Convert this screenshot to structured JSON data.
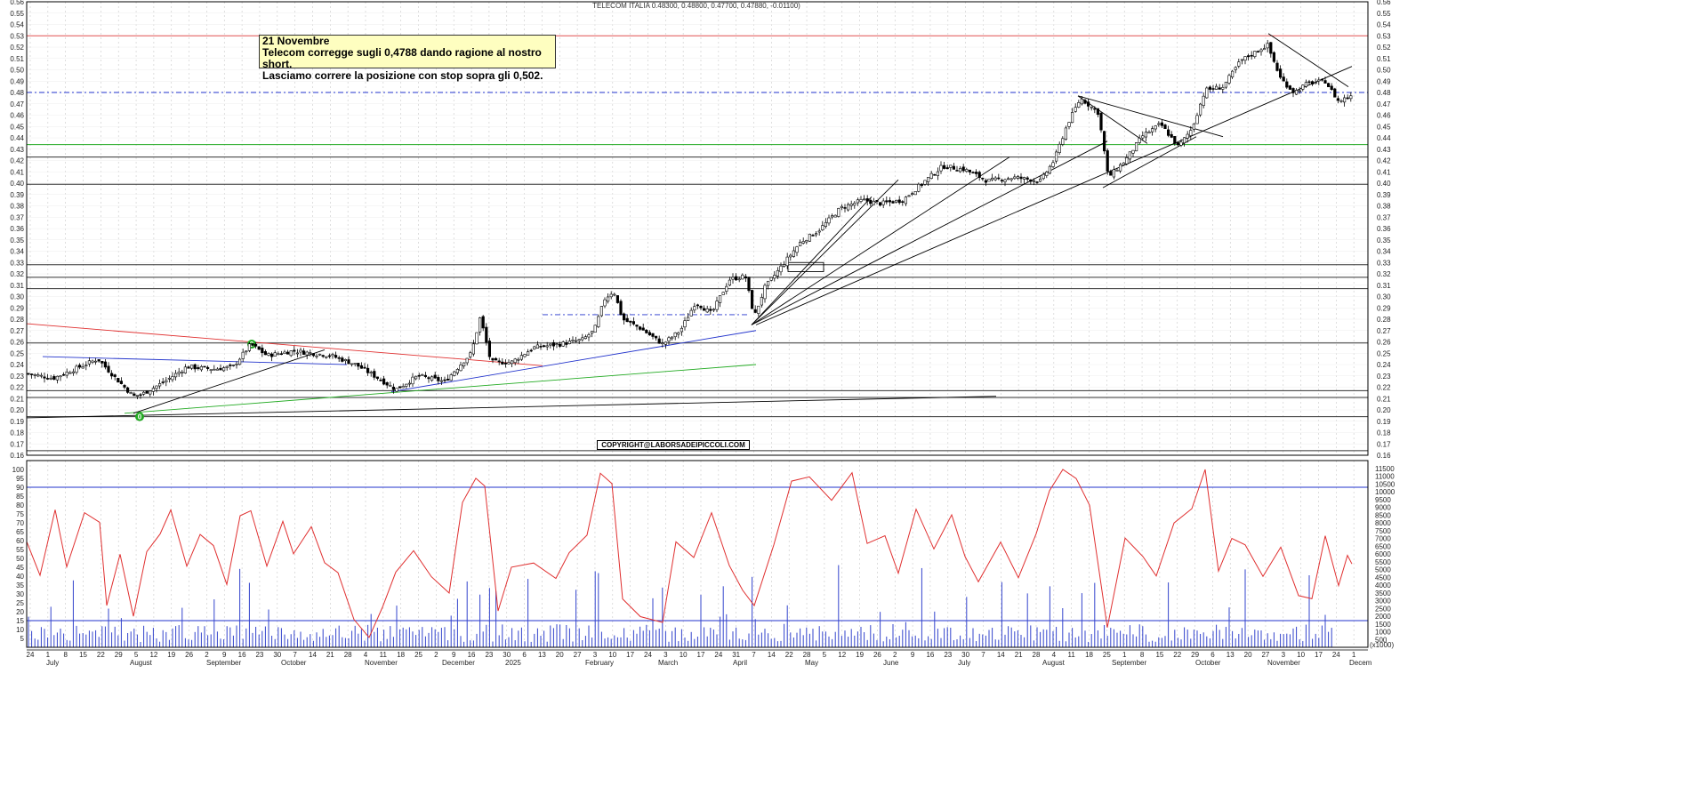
{
  "chart_data": [
    {
      "type": "candlestick",
      "title": "TELECOM ITALIA 0.48300, 0.48800, 0.47700, 0.47880, -0.01100)",
      "ylim": [
        0.16,
        0.56
      ],
      "y_ticks": [
        "0.16",
        "0.17",
        "0.18",
        "0.19",
        "0.20",
        "0.21",
        "0.22",
        "0.23",
        "0.24",
        "0.25",
        "0.26",
        "0.27",
        "0.28",
        "0.29",
        "0.30",
        "0.31",
        "0.32",
        "0.33",
        "0.34",
        "0.35",
        "0.36",
        "0.37",
        "0.38",
        "0.39",
        "0.40",
        "0.41",
        "0.42",
        "0.43",
        "0.44",
        "0.45",
        "0.46",
        "0.47",
        "0.48",
        "0.49",
        "0.50",
        "0.51",
        "0.52",
        "0.53",
        "0.54",
        "0.55",
        "0.56"
      ],
      "horizontal_lines": [
        {
          "value": 0.53,
          "color": "#e05050"
        },
        {
          "value": 0.48,
          "color": "#2233cc",
          "style": "dash-dot"
        },
        {
          "value": 0.434,
          "color": "#22aa22"
        },
        {
          "value": 0.423,
          "color": "#333333"
        },
        {
          "value": 0.399,
          "color": "#333333"
        },
        {
          "value": 0.328,
          "color": "#333333"
        },
        {
          "value": 0.317,
          "color": "#333333"
        },
        {
          "value": 0.307,
          "color": "#333333"
        },
        {
          "value": 0.259,
          "color": "#333333"
        },
        {
          "value": 0.217,
          "color": "#333333"
        },
        {
          "value": 0.211,
          "color": "#333333"
        },
        {
          "value": 0.194,
          "color": "#333333"
        },
        {
          "value": 0.164,
          "color": "#333333"
        }
      ],
      "annotation_lines": [
        "21 Novembre",
        "Telecom corregge sugli 0,4788 dando ragione al nostro short.",
        "Lasciamo correre la posizione con stop sopra gli 0,502."
      ],
      "copyright": "COPYRIGHT@LABORSADEIPICCOLI.COM",
      "markers": [
        "2",
        "0"
      ],
      "last_close": 0.4788
    },
    {
      "type": "oscillator_and_volume",
      "left_ticks": [
        "5",
        "10",
        "15",
        "20",
        "25",
        "30",
        "35",
        "40",
        "45",
        "50",
        "55",
        "60",
        "65",
        "70",
        "75",
        "80",
        "85",
        "90",
        "95",
        "100"
      ],
      "right_ticks": [
        "500",
        "1000",
        "1500",
        "2000",
        "2500",
        "3000",
        "3500",
        "4000",
        "4500",
        "5000",
        "5500",
        "6000",
        "6500",
        "7000",
        "7500",
        "8000",
        "8500",
        "9000",
        "9500",
        "10000",
        "10500",
        "11000",
        "11500"
      ],
      "right_unit": "(x1000)",
      "levels": [
        90,
        15
      ],
      "oscillator_color": "#e03030",
      "volume_color": "#3344cc"
    }
  ],
  "x_axis": {
    "day_labels": [
      "24",
      "1",
      "8",
      "15",
      "22",
      "29",
      "5",
      "12",
      "19",
      "26",
      "2",
      "9",
      "16",
      "23",
      "30",
      "7",
      "14",
      "21",
      "28",
      "4",
      "11",
      "18",
      "25",
      "2",
      "9",
      "16",
      "23",
      "30",
      "6",
      "13",
      "20",
      "27",
      "3",
      "10",
      "17",
      "24",
      "3",
      "10",
      "17",
      "24",
      "31",
      "7",
      "14",
      "22",
      "28",
      "5",
      "12",
      "19",
      "26",
      "2",
      "9",
      "16",
      "23",
      "30",
      "7",
      "14",
      "21",
      "28",
      "4",
      "11",
      "18",
      "25",
      "1",
      "8",
      "15",
      "22",
      "29",
      "6",
      "13",
      "20",
      "27",
      "3",
      "10",
      "17",
      "24",
      "1"
    ],
    "month_labels": [
      "July",
      "August",
      "September",
      "October",
      "November",
      "December",
      "2025",
      "February",
      "March",
      "April",
      "May",
      "June",
      "July",
      "August",
      "September",
      "October",
      "November",
      "Decem"
    ]
  },
  "colors": {
    "bull_candle": "#ffffff",
    "bear_candle": "#000000",
    "grid": "#c8c8c8",
    "trend_red": "#e03030",
    "trend_blue": "#2233cc",
    "trend_green": "#22aa22",
    "marker": "#22aa22"
  }
}
